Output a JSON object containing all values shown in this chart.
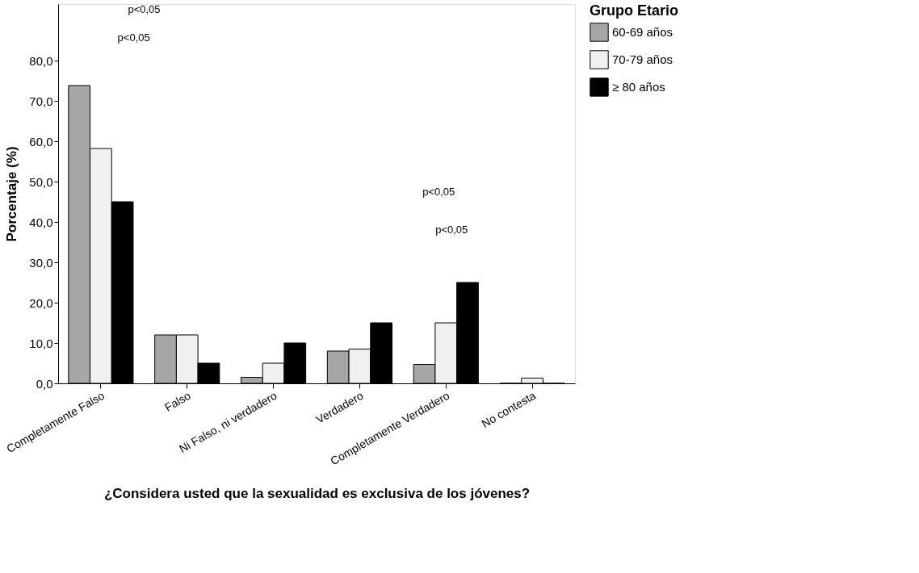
{
  "chart_data": {
    "type": "bar",
    "xlabel": "¿Considera usted que la sexualidad es exclusiva de los jóvenes?",
    "ylabel": "Porcentaje (%)",
    "legend_title": "Grupo Etario",
    "categories": [
      "Completamente Falso",
      "Falso",
      "Ni Falso, ni verdadero",
      "Verdadero",
      "Completamente Verdadero",
      "No contesta"
    ],
    "series": [
      {
        "name": "60-69 años",
        "color": "#a6a6a6",
        "values": [
          73.8,
          12,
          1.5,
          8,
          4.7,
          0
        ]
      },
      {
        "name": "70-79 años",
        "color": "#f0f0f0",
        "values": [
          58.2,
          12,
          5,
          8.5,
          15,
          1.3
        ]
      },
      {
        "name": "≥ 80 años",
        "color": "#000000",
        "values": [
          45,
          5,
          10,
          15,
          25,
          0
        ]
      }
    ],
    "ylim": [
      0,
      94
    ],
    "yticks": [
      {
        "value": 0,
        "label": "0,0"
      },
      {
        "value": 10,
        "label": "10,0"
      },
      {
        "value": 20,
        "label": "20,0"
      },
      {
        "value": 30,
        "label": "30,0"
      },
      {
        "value": 40,
        "label": "40,0"
      },
      {
        "value": 50,
        "label": "50,0"
      },
      {
        "value": 60,
        "label": "60,0"
      },
      {
        "value": 70,
        "label": "70,0"
      },
      {
        "value": 80,
        "label": "80,0"
      }
    ],
    "annotations": [
      "p<0,05",
      "p<0,05",
      "p<0,05",
      "p<0,05"
    ],
    "grid": false,
    "legend": "top right"
  }
}
